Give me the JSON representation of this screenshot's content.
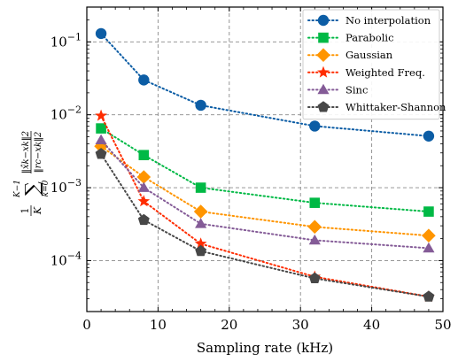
{
  "chart_data": {
    "type": "line",
    "xlabel": "Sampling rate (kHz)",
    "ylabel": {
      "outer_prefix": "1",
      "outer_den": "K",
      "sum_upper": "K−1",
      "sum_lower": "k=0",
      "sigma": "∑",
      "numerator": "‖x̂k−xk‖2",
      "denominator": "‖rc−xk‖2"
    },
    "x_ticks": [
      0,
      10,
      20,
      30,
      40,
      50
    ],
    "xlim": [
      0,
      50
    ],
    "y_scale": "log",
    "ylim": [
      2e-05,
      0.3
    ],
    "y_ticks": [
      {
        "value": 0.0001,
        "base": "10",
        "exp": "−4"
      },
      {
        "value": 0.001,
        "base": "10",
        "exp": "−3"
      },
      {
        "value": 0.01,
        "base": "10",
        "exp": "−2"
      },
      {
        "value": 0.1,
        "base": "10",
        "exp": "−1"
      }
    ],
    "grid": true,
    "legend_position": "top-right",
    "x": [
      2,
      8,
      16,
      32,
      48
    ],
    "series": [
      {
        "name": "No interpolation",
        "color": "#0c5da5",
        "marker": "circle",
        "values": [
          0.13,
          0.03,
          0.0135,
          0.007,
          0.0051
        ]
      },
      {
        "name": "Parabolic",
        "color": "#00b945",
        "marker": "square",
        "values": [
          0.0065,
          0.0028,
          0.001,
          0.00062,
          0.00047
        ]
      },
      {
        "name": "Gaussian",
        "color": "#ff9500",
        "marker": "diamond",
        "values": [
          0.0037,
          0.0014,
          0.00047,
          0.00029,
          0.00022
        ]
      },
      {
        "name": "Weighted Freq.",
        "color": "#ff2c00",
        "marker": "star",
        "values": [
          0.0097,
          0.00065,
          0.00017,
          6e-05,
          3.2e-05
        ]
      },
      {
        "name": "Sinc",
        "color": "#845b97",
        "marker": "triangle",
        "values": [
          0.0045,
          0.001,
          0.00032,
          0.00019,
          0.000148
        ]
      },
      {
        "name": "Whittaker-Shannon",
        "color": "#474747",
        "marker": "pentagon",
        "values": [
          0.0029,
          0.00036,
          0.000135,
          5.7e-05,
          3.2e-05
        ]
      }
    ]
  }
}
